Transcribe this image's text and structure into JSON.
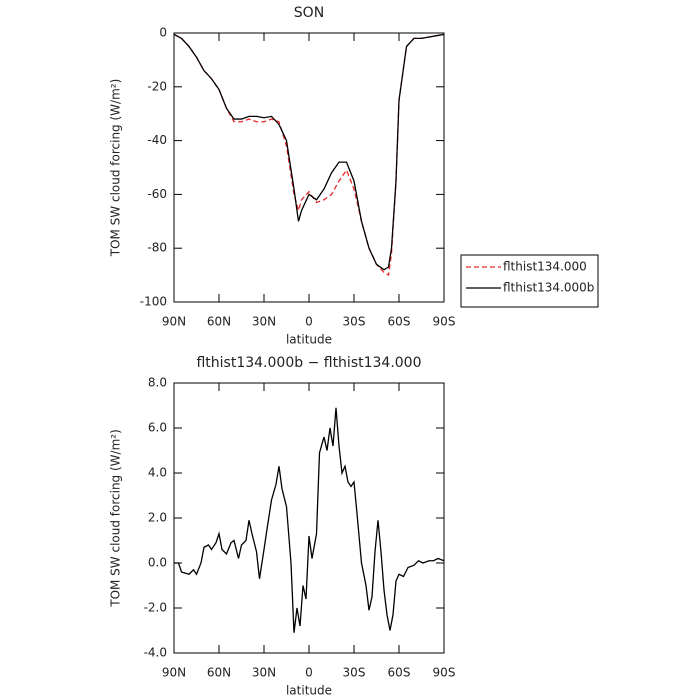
{
  "chart_data": [
    {
      "type": "line",
      "title": "SON",
      "xlabel": "latitude",
      "ylabel": "TOM SW cloud forcing (W/m²)",
      "x": [
        90,
        85,
        80,
        75,
        70,
        65,
        60,
        55,
        50,
        45,
        40,
        35,
        30,
        25,
        20,
        15,
        10,
        7,
        5,
        0,
        -5,
        -10,
        -15,
        -20,
        -25,
        -30,
        -35,
        -40,
        -45,
        -50,
        -53,
        -55,
        -58,
        -60,
        -65,
        -70,
        -75,
        -80,
        -85,
        -90
      ],
      "series": [
        {
          "name": "flthist134.000",
          "color": "#e8282b",
          "linestyle": "dashed",
          "values": [
            -0.5,
            -2,
            -5,
            -9,
            -14,
            -17,
            -21,
            -28,
            -33,
            -33,
            -32,
            -33,
            -33,
            -32,
            -33,
            -42,
            -60,
            -66,
            -62,
            -59,
            -63,
            -62,
            -60,
            -55,
            -51,
            -58,
            -70,
            -80,
            -86,
            -89,
            -90,
            -82,
            -55,
            -25,
            -5,
            -2,
            -2,
            -1.5,
            -1,
            -0.5
          ]
        },
        {
          "name": "flthist134.000b",
          "color": "#000000",
          "linestyle": "solid",
          "values": [
            -0.5,
            -2,
            -5,
            -9,
            -14,
            -17,
            -21,
            -28,
            -32,
            -32,
            -31,
            -31,
            -31.5,
            -31,
            -34,
            -40,
            -58,
            -70,
            -66,
            -60,
            -62,
            -58,
            -52,
            -48,
            -48,
            -55,
            -70,
            -80,
            -86,
            -88,
            -87,
            -80,
            -55,
            -25,
            -5,
            -2,
            -2,
            -1.5,
            -1,
            -0.5
          ]
        }
      ],
      "xlim": [
        90,
        -90
      ],
      "xticks": [
        {
          "value": 90,
          "label": "90N"
        },
        {
          "value": 60,
          "label": "60N"
        },
        {
          "value": 30,
          "label": "30N"
        },
        0,
        {
          "value": -30,
          "label": "30S"
        },
        {
          "value": -60,
          "label": "60S"
        },
        {
          "value": -90,
          "label": "90S"
        }
      ],
      "ylim": [
        -100,
        0
      ],
      "yticks": [
        -100,
        -80,
        -60,
        -40,
        -20,
        0
      ],
      "legend": "right"
    },
    {
      "type": "line",
      "title": "flthist134.000b − flthist134.000",
      "xlabel": "latitude",
      "ylabel": "TOM SW cloud forcing (W/m²)",
      "x": [
        90,
        87,
        85,
        80,
        77,
        75,
        72,
        70,
        67,
        65,
        62,
        60,
        58,
        55,
        52,
        50,
        47,
        45,
        42,
        40,
        38,
        35,
        33,
        30,
        28,
        25,
        22,
        20,
        18,
        15,
        12,
        10,
        8,
        6,
        4,
        2,
        0,
        -2,
        -5,
        -7,
        -10,
        -12,
        -14,
        -16,
        -18,
        -20,
        -22,
        -24,
        -26,
        -28,
        -30,
        -32,
        -35,
        -38,
        -40,
        -42,
        -44,
        -46,
        -48,
        -50,
        -52,
        -54,
        -56,
        -58,
        -60,
        -63,
        -66,
        -70,
        -73,
        -76,
        -80,
        -83,
        -86,
        -90
      ],
      "series": [
        {
          "name": "flthist134.000b",
          "color": "#000000",
          "linestyle": "solid",
          "values": [
            0,
            0,
            -0.4,
            -0.5,
            -0.3,
            -0.5,
            0,
            0.7,
            0.8,
            0.6,
            0.9,
            1.3,
            0.6,
            0.4,
            0.9,
            1.0,
            0.2,
            0.8,
            1.0,
            1.9,
            1.3,
            0.5,
            -0.7,
            0.6,
            1.5,
            2.8,
            3.5,
            4.3,
            3.3,
            2.5,
            0,
            -3.1,
            -2.0,
            -2.8,
            -1.0,
            -1.6,
            1.2,
            0.2,
            1.3,
            4.9,
            5.6,
            5.0,
            6.0,
            5.2,
            6.9,
            5.2,
            4.0,
            4.3,
            3.6,
            3.4,
            3.6,
            2.2,
            0,
            -1.0,
            -2.1,
            -1.5,
            0.5,
            1.9,
            0.5,
            -1.2,
            -2.3,
            -3.0,
            -2.3,
            -0.8,
            -0.5,
            -0.6,
            -0.2,
            -0.1,
            0.1,
            0,
            0.1,
            0.1,
            0.2,
            0.1
          ]
        }
      ],
      "xlim": [
        90,
        -90
      ],
      "xticks": [
        {
          "value": 90,
          "label": "90N"
        },
        {
          "value": 60,
          "label": "60N"
        },
        {
          "value": 30,
          "label": "30N"
        },
        0,
        {
          "value": -30,
          "label": "30S"
        },
        {
          "value": -60,
          "label": "60S"
        },
        {
          "value": -90,
          "label": "90S"
        }
      ],
      "ylim": [
        -4,
        8
      ],
      "yticks": [
        {
          "value": -4,
          "label": "-4.0"
        },
        {
          "value": -2,
          "label": "-2.0"
        },
        {
          "value": 0,
          "label": "0.0"
        },
        {
          "value": 2,
          "label": "2.0"
        },
        {
          "value": 4,
          "label": "4.0"
        },
        {
          "value": 6,
          "label": "6.0"
        },
        {
          "value": 8,
          "label": "8.0"
        }
      ]
    }
  ]
}
